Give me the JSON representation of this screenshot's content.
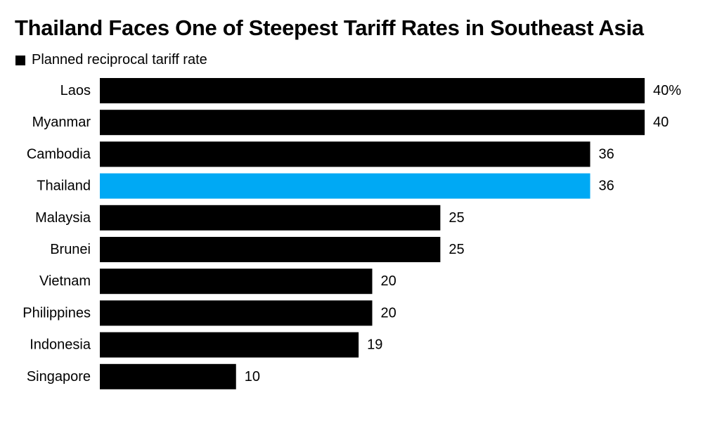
{
  "chart_data": {
    "type": "bar",
    "orientation": "horizontal",
    "title": "Thailand Faces One of Steepest Tariff Rates in Southeast Asia",
    "legend": [
      {
        "name": "Planned reciprocal tariff rate",
        "color": "#000000"
      }
    ],
    "categories": [
      "Laos",
      "Myanmar",
      "Cambodia",
      "Thailand",
      "Malaysia",
      "Brunei",
      "Vietnam",
      "Philippines",
      "Indonesia",
      "Singapore"
    ],
    "values": [
      40,
      40,
      36,
      36,
      25,
      25,
      20,
      20,
      19,
      10
    ],
    "value_labels": [
      "40%",
      "40",
      "36",
      "36",
      "25",
      "25",
      "20",
      "20",
      "19",
      "10"
    ],
    "highlight": {
      "category": "Thailand",
      "color": "#00a9f4"
    },
    "bar_color": "#000000",
    "xlim": [
      0,
      40
    ],
    "xlabel": "",
    "ylabel": "",
    "grid": false
  }
}
